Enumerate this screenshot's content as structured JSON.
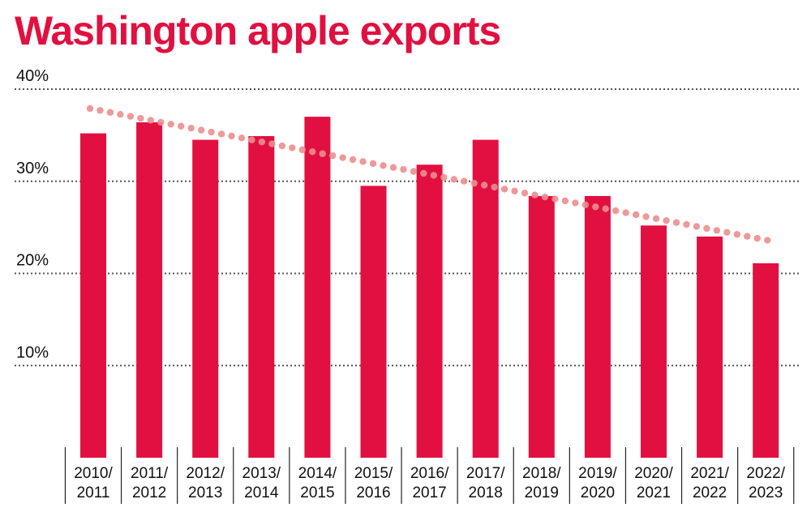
{
  "chart_data": {
    "type": "bar",
    "title": "Washington apple exports",
    "xlabel": "",
    "ylabel": "",
    "ylim": [
      0,
      40
    ],
    "yticks": [
      "10%",
      "20%",
      "30%",
      "40%"
    ],
    "ytick_values": [
      10,
      20,
      30,
      40
    ],
    "grid": true,
    "categories": [
      [
        "2010/",
        "2011"
      ],
      [
        "2011/",
        "2012"
      ],
      [
        "2012/",
        "2013"
      ],
      [
        "2013/",
        "2014"
      ],
      [
        "2014/",
        "2015"
      ],
      [
        "2015/",
        "2016"
      ],
      [
        "2016/",
        "2017"
      ],
      [
        "2017/",
        "2018"
      ],
      [
        "2018/",
        "2019"
      ],
      [
        "2019/",
        "2020"
      ],
      [
        "2020/",
        "2021"
      ],
      [
        "2021/",
        "2022"
      ],
      [
        "2022/",
        "2023"
      ]
    ],
    "values": [
      35.2,
      36.4,
      34.5,
      34.9,
      37.0,
      29.5,
      31.8,
      34.5,
      28.4,
      28.4,
      25.2,
      24.0,
      21.1
    ],
    "trendline": {
      "start": 37.9,
      "end": 23.6,
      "style": "dotted"
    },
    "colors": {
      "bar": "#e11040",
      "trend": "#ec8e8e",
      "grid": "#555555",
      "title": "#e11040"
    }
  }
}
